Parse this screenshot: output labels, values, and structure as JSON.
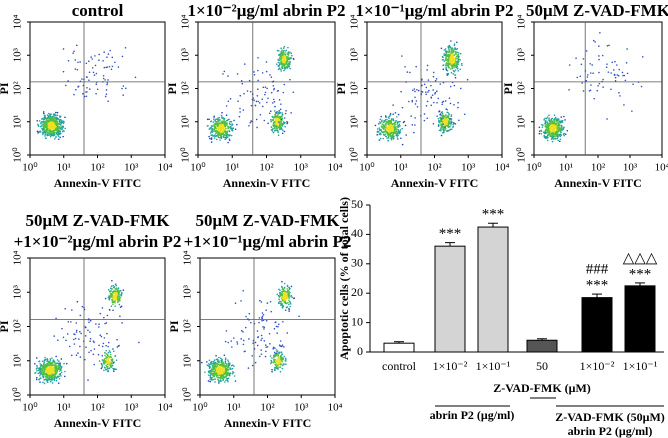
{
  "chart_data": [
    {
      "type": "flow",
      "title": [
        "control"
      ],
      "x_label": "Annexin-V FITC",
      "y_label": "PI",
      "log": true,
      "xlim": [
        1,
        10000
      ],
      "ylim": [
        1,
        10000
      ],
      "xticks": [
        {
          "value": 1,
          "label": "10⁰"
        },
        {
          "value": 10,
          "label": "10¹"
        },
        {
          "value": 100,
          "label": "10²"
        },
        {
          "value": 1000,
          "label": "10³"
        },
        {
          "value": 10000,
          "label": "10⁴"
        }
      ],
      "yticks": [
        {
          "value": 1,
          "label": "10⁰"
        },
        {
          "value": 10,
          "label": "10¹"
        },
        {
          "value": 100,
          "label": "10²"
        },
        {
          "value": 1000,
          "label": "10³"
        },
        {
          "value": 10000,
          "label": "10⁴"
        }
      ]
    },
    {
      "type": "flow",
      "title": [
        "1×10⁻²μg/ml abrin P2"
      ],
      "x_label": "Annexin-V FITC",
      "y_label": "PI",
      "log": true,
      "xlim": [
        1,
        10000
      ],
      "ylim": [
        1,
        10000
      ],
      "xticks": [
        {
          "value": 1,
          "label": "10⁰"
        },
        {
          "value": 10,
          "label": "10¹"
        },
        {
          "value": 100,
          "label": "10²"
        },
        {
          "value": 1000,
          "label": "10³"
        },
        {
          "value": 10000,
          "label": "10⁴"
        }
      ],
      "yticks": [
        {
          "value": 1,
          "label": "10⁰"
        },
        {
          "value": 10,
          "label": "10¹"
        },
        {
          "value": 100,
          "label": "10²"
        },
        {
          "value": 1000,
          "label": "10³"
        },
        {
          "value": 10000,
          "label": "10⁴"
        }
      ]
    },
    {
      "type": "flow",
      "title": [
        "1×10⁻¹μg/ml abrin P2"
      ],
      "x_label": "Annexin-V FITC",
      "y_label": "PI",
      "log": true,
      "xlim": [
        1,
        10000
      ],
      "ylim": [
        1,
        10000
      ],
      "xticks": [
        {
          "value": 1,
          "label": "10⁰"
        },
        {
          "value": 10,
          "label": "10¹"
        },
        {
          "value": 100,
          "label": "10²"
        },
        {
          "value": 1000,
          "label": "10³"
        },
        {
          "value": 10000,
          "label": "10⁴"
        }
      ],
      "yticks": [
        {
          "value": 1,
          "label": "10⁰"
        },
        {
          "value": 10,
          "label": "10¹"
        },
        {
          "value": 100,
          "label": "10²"
        },
        {
          "value": 1000,
          "label": "10³"
        },
        {
          "value": 10000,
          "label": "10⁴"
        }
      ]
    },
    {
      "type": "flow",
      "title": [
        "50μM Z-VAD-FMK"
      ],
      "x_label": "Annexin-V FITC",
      "y_label": "PI",
      "log": true,
      "xlim": [
        1,
        10000
      ],
      "ylim": [
        1,
        10000
      ],
      "xticks": [
        {
          "value": 1,
          "label": "10⁰"
        },
        {
          "value": 10,
          "label": "10¹"
        },
        {
          "value": 100,
          "label": "10²"
        },
        {
          "value": 1000,
          "label": "10³"
        },
        {
          "value": 10000,
          "label": "10⁴"
        }
      ],
      "yticks": [
        {
          "value": 1,
          "label": "10⁰"
        },
        {
          "value": 10,
          "label": "10¹"
        },
        {
          "value": 100,
          "label": "10²"
        },
        {
          "value": 1000,
          "label": "10³"
        },
        {
          "value": 10000,
          "label": "10⁴"
        }
      ]
    },
    {
      "type": "flow",
      "title": [
        "50μM Z-VAD-FMK",
        "+1×10⁻²μg/ml abrin P2"
      ],
      "x_label": "Annexin-V FITC",
      "y_label": "PI",
      "log": true,
      "xlim": [
        1,
        10000
      ],
      "ylim": [
        1,
        10000
      ],
      "xticks": [
        {
          "value": 1,
          "label": "10⁰"
        },
        {
          "value": 10,
          "label": "10¹"
        },
        {
          "value": 100,
          "label": "10²"
        },
        {
          "value": 1000,
          "label": "10³"
        },
        {
          "value": 10000,
          "label": "10⁴"
        }
      ],
      "yticks": [
        {
          "value": 1,
          "label": "10⁰"
        },
        {
          "value": 10,
          "label": "10¹"
        },
        {
          "value": 100,
          "label": "10²"
        },
        {
          "value": 1000,
          "label": "10³"
        },
        {
          "value": 10000,
          "label": "10⁴"
        }
      ]
    },
    {
      "type": "flow",
      "title": [
        "50μM Z-VAD-FMK",
        "+1×10⁻¹μg/ml abrin P2"
      ],
      "x_label": "Annexin-V FITC",
      "y_label": "PI",
      "log": true,
      "xlim": [
        1,
        10000
      ],
      "ylim": [
        1,
        10000
      ],
      "xticks": [
        {
          "value": 1,
          "label": "10⁰"
        },
        {
          "value": 10,
          "label": "10¹"
        },
        {
          "value": 100,
          "label": "10²"
        },
        {
          "value": 1000,
          "label": "10³"
        },
        {
          "value": 10000,
          "label": "10⁴"
        }
      ],
      "yticks": [
        {
          "value": 1,
          "label": "10⁰"
        },
        {
          "value": 10,
          "label": "10¹"
        },
        {
          "value": 100,
          "label": "10²"
        },
        {
          "value": 1000,
          "label": "10³"
        },
        {
          "value": 10000,
          "label": "10⁴"
        }
      ]
    },
    {
      "type": "bar",
      "y_label": "Apoptotic cells (% of total cells)",
      "categories": [
        "control",
        "1×10⁻²",
        "1×10⁻¹",
        "50",
        "1×10⁻²",
        "1×10⁻¹"
      ],
      "values": [
        3,
        36,
        42.5,
        4,
        18.5,
        22.5
      ],
      "errors": [
        0.5,
        1.2,
        1.3,
        0.5,
        1.2,
        1.0
      ],
      "colors": [
        "#ffffff",
        "#d4d4d4",
        "#d4d4d4",
        "#555555",
        "#000000",
        "#000000"
      ],
      "annotations": [
        null,
        [
          "***"
        ],
        [
          "***"
        ],
        null,
        [
          "###",
          "***"
        ],
        [
          "△△△",
          "***"
        ]
      ],
      "ylim": [
        0,
        50
      ],
      "yticks": [
        0,
        10,
        20,
        30,
        40,
        50
      ],
      "group_labels": [
        [
          "Z-VAD-FMK (μM)"
        ],
        [
          "abrin P2 (μg/ml)"
        ],
        [
          "Z-VAD-FMK (50μM)",
          "abrin P2 (μg/ml)"
        ]
      ]
    }
  ]
}
